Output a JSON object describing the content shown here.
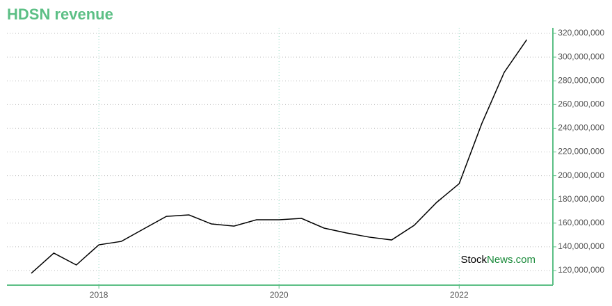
{
  "chart_data": {
    "type": "line",
    "title": "HDSN revenue",
    "x": [
      2017.25,
      2017.5,
      2017.75,
      2018,
      2018.25,
      2018.5,
      2018.75,
      2019,
      2019.25,
      2019.5,
      2019.75,
      2020,
      2020.25,
      2020.5,
      2020.75,
      2021,
      2021.25,
      2021.5,
      2021.75,
      2022,
      2022.25,
      2022.5,
      2022.75
    ],
    "series": [
      {
        "name": "HDSN revenue",
        "color": "#000000",
        "values": [
          117700000,
          134700000,
          124700000,
          141700000,
          144600000,
          155200000,
          165700000,
          166900000,
          159300000,
          157500000,
          162800000,
          162800000,
          164000000,
          155800000,
          151700000,
          148200000,
          145800000,
          158100000,
          177500000,
          193300000,
          243800000,
          287200000,
          314700000
        ]
      }
    ],
    "xlim": [
      2016.98,
      2023.04
    ],
    "xticks": [
      2018,
      2020,
      2022
    ],
    "ylim": [
      107700000,
      324700000
    ],
    "yticks": [
      {
        "value": 120000000,
        "label": "120,000,000"
      },
      {
        "value": 140000000,
        "label": "140,000,000"
      },
      {
        "value": 160000000,
        "label": "160,000,000"
      },
      {
        "value": 180000000,
        "label": "180,000,000"
      },
      {
        "value": 200000000,
        "label": "200,000,000"
      },
      {
        "value": 220000000,
        "label": "220,000,000"
      },
      {
        "value": 240000000,
        "label": "240,000,000"
      },
      {
        "value": 260000000,
        "label": "260,000,000"
      },
      {
        "value": 280000000,
        "label": "280,000,000"
      },
      {
        "value": 300000000,
        "label": "300,000,000"
      },
      {
        "value": 320000000,
        "label": "320,000,000"
      }
    ],
    "grid": true,
    "axis_color": "#5cbf85",
    "watermark": {
      "prefix": "Stock",
      "suffix": "News.com"
    }
  }
}
